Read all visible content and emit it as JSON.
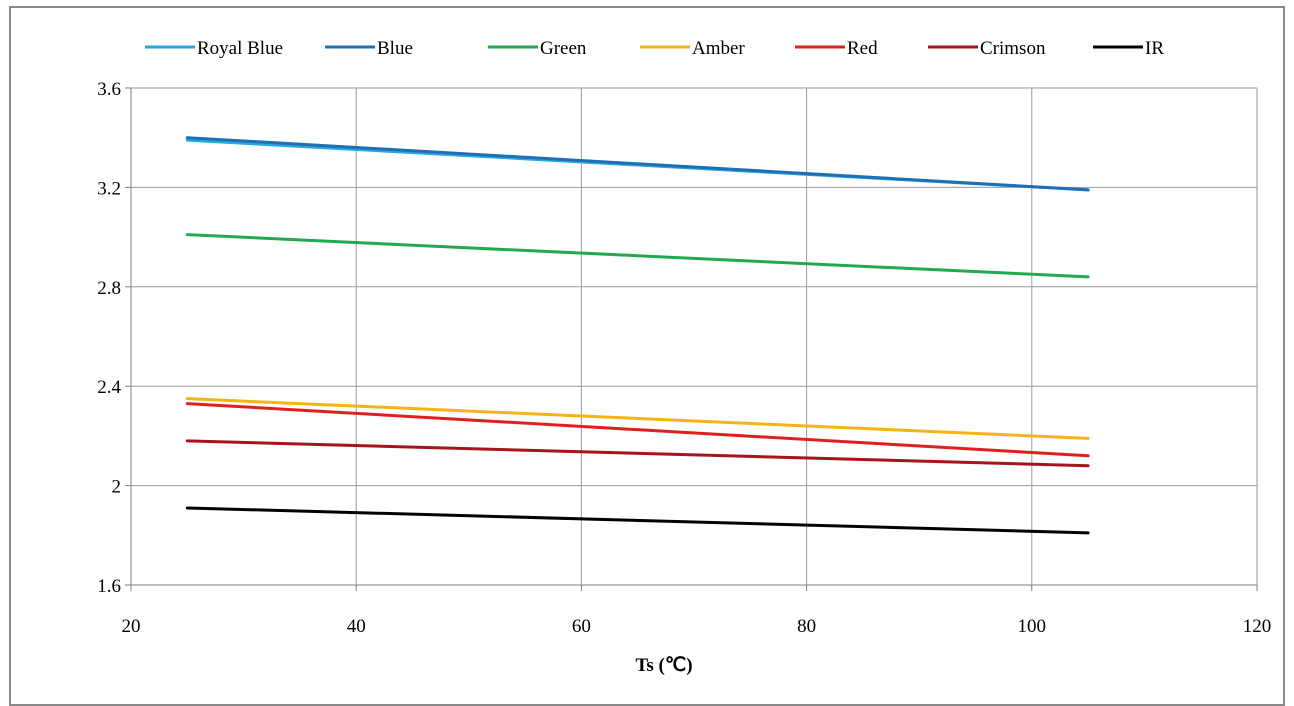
{
  "chart_data": {
    "type": "line",
    "title": "",
    "xlabel": "Ts (℃)",
    "ylabel": "",
    "xlim": [
      20,
      120
    ],
    "ylim": [
      1.6,
      3.6
    ],
    "xticks": [
      20,
      40,
      60,
      80,
      100,
      120
    ],
    "yticks": [
      1.6,
      2.0,
      2.4,
      2.8,
      3.2,
      3.6
    ],
    "xtick_labels": [
      "20",
      "40",
      "60",
      "80",
      "100",
      "120"
    ],
    "ytick_labels": [
      "1.6",
      "2",
      "2.4",
      "2.8",
      "3.2",
      "3.6"
    ],
    "grid": true,
    "legend_position": "top",
    "series": [
      {
        "name": "Royal Blue",
        "color": "#29a8e0",
        "x": [
          25,
          105
        ],
        "y": [
          3.39,
          3.19
        ]
      },
      {
        "name": "Blue",
        "color": "#1f6fb5",
        "x": [
          25,
          105
        ],
        "y": [
          3.4,
          3.19
        ]
      },
      {
        "name": "Green",
        "color": "#22a94f",
        "x": [
          25,
          105
        ],
        "y": [
          3.01,
          2.84
        ]
      },
      {
        "name": "Amber",
        "color": "#f5b414",
        "x": [
          25,
          105
        ],
        "y": [
          2.35,
          2.19
        ]
      },
      {
        "name": "Red",
        "color": "#e0201f",
        "x": [
          25,
          105
        ],
        "y": [
          2.33,
          2.12
        ]
      },
      {
        "name": "Crimson",
        "color": "#a5161c",
        "x": [
          25,
          105
        ],
        "y": [
          2.18,
          2.08
        ]
      },
      {
        "name": "IR",
        "color": "#000000",
        "x": [
          25,
          105
        ],
        "y": [
          1.91,
          1.81
        ]
      }
    ]
  }
}
